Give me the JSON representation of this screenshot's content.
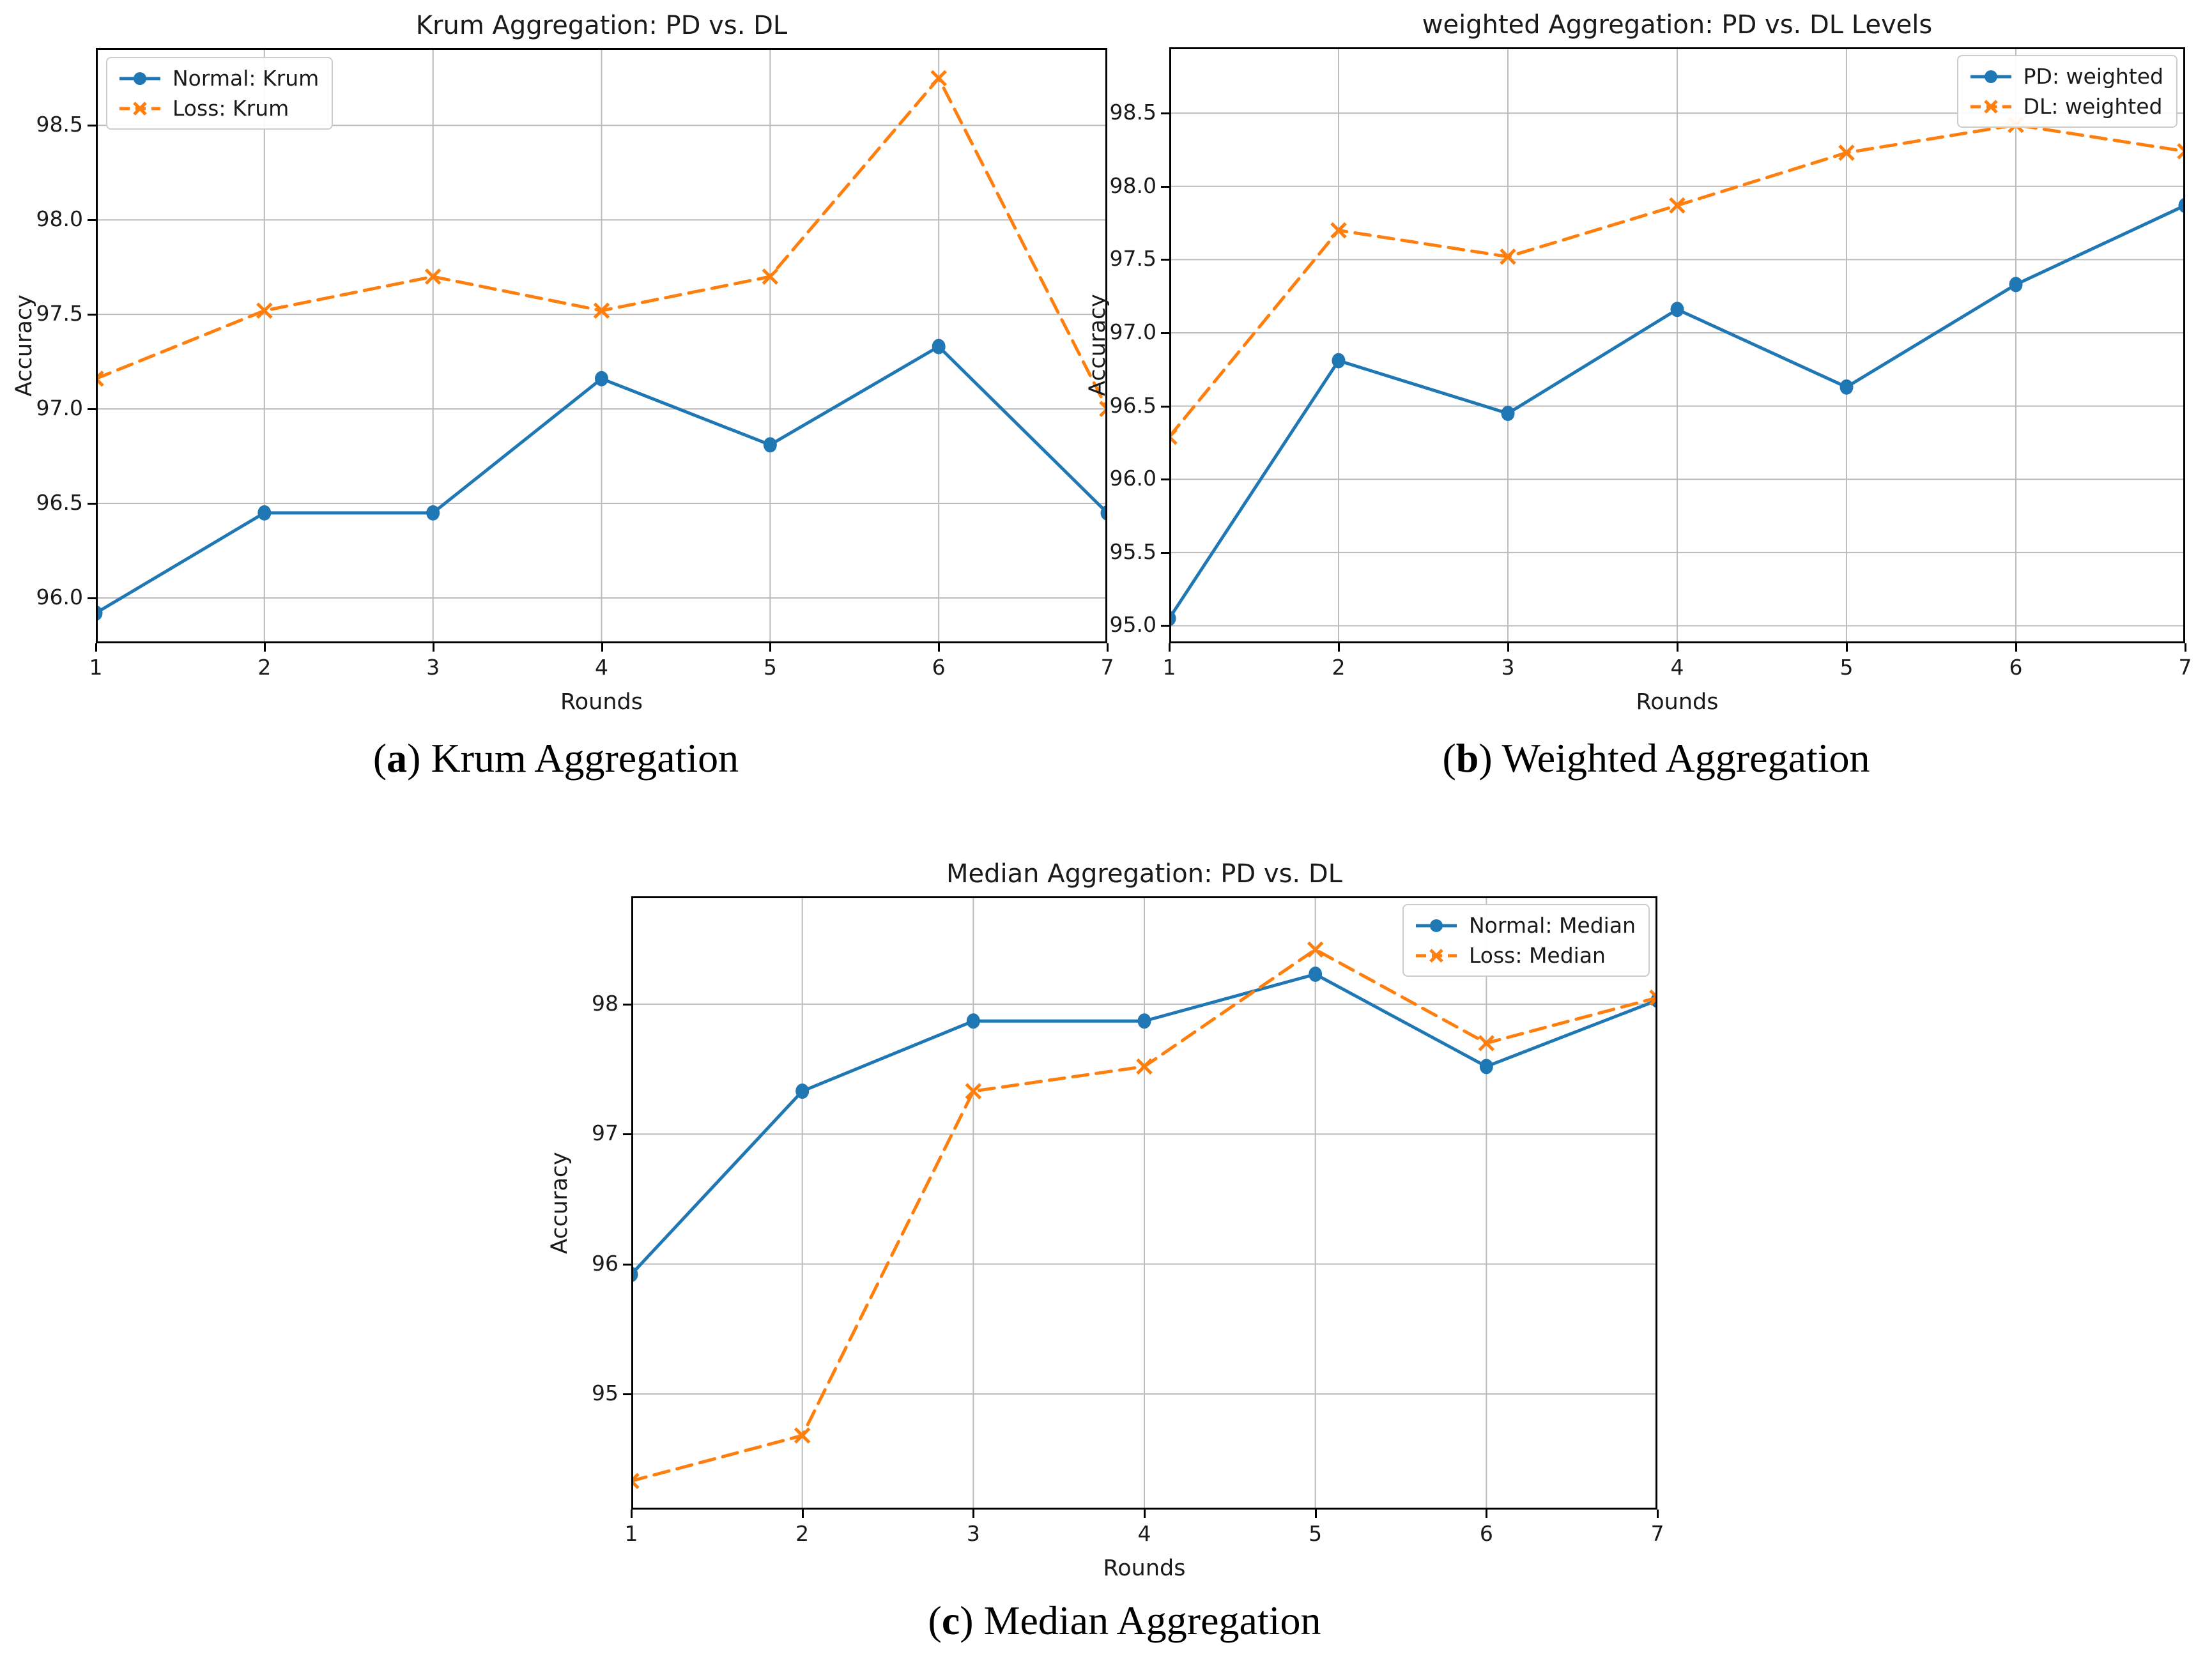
{
  "colors": {
    "blue": "#1f77b4",
    "orange": "#ff7f0e",
    "grid": "#bcbcbc",
    "spine": "#000000",
    "text": "#1a1a1a"
  },
  "figure": {
    "captions": [
      {
        "open": "(",
        "letter": "a",
        "close": ")",
        "label": " Krum Aggregation"
      },
      {
        "open": "(",
        "letter": "b",
        "close": ")",
        "label": " Weighted Aggregation"
      },
      {
        "open": "(",
        "letter": "c",
        "close": ")",
        "label": " Median Aggregation"
      }
    ]
  },
  "chart_data": [
    {
      "type": "line",
      "title": "Krum Aggregation: PD vs. DL",
      "xlabel": "Rounds",
      "ylabel": "Accuracy",
      "x": [
        1,
        2,
        3,
        4,
        5,
        6,
        7
      ],
      "xtick_labels": [
        "1",
        "2",
        "3",
        "4",
        "5",
        "6",
        "7"
      ],
      "xlim": [
        1,
        7
      ],
      "yticks": [
        96.0,
        96.5,
        97.0,
        97.5,
        98.0,
        98.5
      ],
      "ytick_labels": [
        "96.0",
        "96.5",
        "97.0",
        "97.5",
        "98.0",
        "98.5"
      ],
      "ylim": [
        95.76,
        98.91
      ],
      "grid": true,
      "legend_position": "top-left",
      "series": [
        {
          "name": "Normal: Krum",
          "color": "#1f77b4",
          "line": "solid",
          "marker": "circle",
          "values": [
            95.92,
            96.45,
            96.45,
            97.16,
            96.81,
            97.33,
            96.45
          ]
        },
        {
          "name": "Loss: Krum",
          "color": "#ff7f0e",
          "line": "dashed",
          "marker": "x",
          "values": [
            97.16,
            97.52,
            97.7,
            97.52,
            97.7,
            98.75,
            97.0
          ]
        }
      ]
    },
    {
      "type": "line",
      "title": "weighted Aggregation: PD vs. DL Levels",
      "xlabel": "Rounds",
      "ylabel": "Accuracy",
      "x": [
        1,
        2,
        3,
        4,
        5,
        6,
        7
      ],
      "xtick_labels": [
        "1",
        "2",
        "3",
        "4",
        "5",
        "6",
        "7"
      ],
      "xlim": [
        1,
        7
      ],
      "yticks": [
        95.0,
        95.5,
        96.0,
        96.5,
        97.0,
        97.5,
        98.0,
        98.5
      ],
      "ytick_labels": [
        "95.0",
        "95.5",
        "96.0",
        "96.5",
        "97.0",
        "97.5",
        "98.0",
        "98.5"
      ],
      "ylim": [
        94.88,
        98.95
      ],
      "grid": true,
      "legend_position": "top-right",
      "series": [
        {
          "name": "PD: weighted",
          "color": "#1f77b4",
          "line": "solid",
          "marker": "circle",
          "values": [
            95.05,
            96.81,
            96.45,
            97.16,
            96.63,
            97.33,
            97.87
          ]
        },
        {
          "name": "DL: weighted",
          "color": "#ff7f0e",
          "line": "dashed",
          "marker": "x",
          "values": [
            96.29,
            97.7,
            97.52,
            97.87,
            98.23,
            98.42,
            98.24
          ]
        }
      ]
    },
    {
      "type": "line",
      "title": "Median Aggregation: PD vs. DL",
      "xlabel": "Rounds",
      "ylabel": "Accuracy",
      "x": [
        1,
        2,
        3,
        4,
        5,
        6,
        7
      ],
      "xtick_labels": [
        "1",
        "2",
        "3",
        "4",
        "5",
        "6",
        "7"
      ],
      "xlim": [
        1,
        7
      ],
      "yticks": [
        95,
        96,
        97,
        98
      ],
      "ytick_labels": [
        "95",
        "96",
        "97",
        "98"
      ],
      "ylim": [
        94.11,
        98.83
      ],
      "grid": true,
      "legend_position": "top-right",
      "series": [
        {
          "name": "Normal: Median",
          "color": "#1f77b4",
          "line": "solid",
          "marker": "circle",
          "values": [
            95.92,
            97.33,
            97.87,
            97.87,
            98.23,
            97.52,
            98.03
          ]
        },
        {
          "name": "Loss: Median",
          "color": "#ff7f0e",
          "line": "dashed",
          "marker": "x",
          "values": [
            94.33,
            94.68,
            97.33,
            97.52,
            98.42,
            97.7,
            98.05
          ]
        }
      ]
    }
  ]
}
